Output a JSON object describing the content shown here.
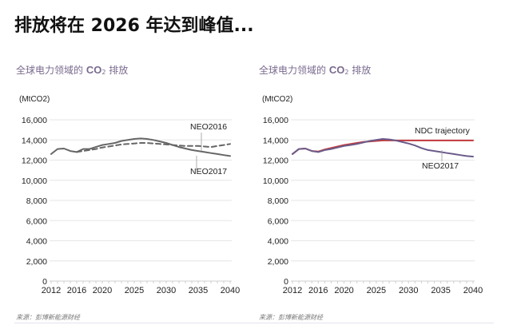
{
  "page": {
    "title": "排放将在 2026 年达到峰值...",
    "source_left": "来源：彭博新能源财经",
    "source_right": "来源：彭博新能源财经"
  },
  "colors": {
    "neo2017_left": "#666666",
    "neo2016_left": "#666666",
    "neo2017_right": "#6b5b8a",
    "ndc": "#c0393b",
    "title_purple": "#7a6a8e",
    "grid": "#e6e6e6"
  },
  "chart_data": [
    {
      "type": "line",
      "title_prefix": "全球电力领域的 ",
      "title_co": "CO",
      "title_sub": "2",
      "title_suffix": " 排放",
      "ylabel": "(MtCO2)",
      "xlabel": "",
      "ylim": [
        0,
        16000
      ],
      "xlim": [
        2012,
        2040
      ],
      "yticks": [
        0,
        2000,
        4000,
        6000,
        8000,
        10000,
        12000,
        14000,
        16000
      ],
      "ytick_labels": [
        "0",
        "2,000",
        "4,000",
        "6,000",
        "8,000",
        "10,000",
        "12,000",
        "14,000",
        "16,000"
      ],
      "xticks": [
        2012,
        2016,
        2020,
        2025,
        2030,
        2035,
        2040
      ],
      "xtick_labels": [
        "2012",
        "2016",
        "2020",
        "2025",
        "2030",
        "2035",
        "2040"
      ],
      "grid": true,
      "series": [
        {
          "name": "NEO2017",
          "style": "solid",
          "x": [
            2012,
            2013,
            2014,
            2015,
            2016,
            2017,
            2018,
            2019,
            2020,
            2021,
            2022,
            2023,
            2024,
            2025,
            2026,
            2027,
            2028,
            2029,
            2030,
            2031,
            2032,
            2033,
            2034,
            2035,
            2036,
            2037,
            2038,
            2039,
            2040
          ],
          "values": [
            12600,
            13100,
            13150,
            12900,
            12800,
            13100,
            13100,
            13300,
            13500,
            13600,
            13700,
            13900,
            14000,
            14100,
            14150,
            14100,
            14000,
            13850,
            13700,
            13500,
            13300,
            13150,
            13000,
            12900,
            12800,
            12700,
            12600,
            12500,
            12400
          ]
        },
        {
          "name": "NEO2016",
          "style": "dashed",
          "x": [
            2016,
            2017,
            2018,
            2019,
            2020,
            2021,
            2022,
            2023,
            2024,
            2025,
            2026,
            2027,
            2028,
            2029,
            2030,
            2031,
            2032,
            2033,
            2034,
            2035,
            2036,
            2037,
            2038,
            2039,
            2040
          ],
          "values": [
            12800,
            12900,
            13000,
            13100,
            13250,
            13350,
            13450,
            13550,
            13600,
            13650,
            13700,
            13700,
            13650,
            13600,
            13550,
            13500,
            13450,
            13400,
            13400,
            13400,
            13350,
            13300,
            13400,
            13500,
            13600
          ]
        }
      ],
      "annotations": [
        "NEO2016",
        "NEO2017"
      ]
    },
    {
      "type": "line",
      "title_prefix": "全球电力领域的 ",
      "title_co": "CO",
      "title_sub": "2",
      "title_suffix": " 排放",
      "ylabel": "(MtCO2)",
      "xlabel": "",
      "ylim": [
        0,
        16000
      ],
      "xlim": [
        2012,
        2040
      ],
      "yticks": [
        0,
        2000,
        4000,
        6000,
        8000,
        10000,
        12000,
        14000,
        16000
      ],
      "ytick_labels": [
        "0",
        "2,000",
        "4,000",
        "6,000",
        "8,000",
        "10,000",
        "12,000",
        "14,000",
        "16,000"
      ],
      "xticks": [
        2012,
        2016,
        2020,
        2025,
        2030,
        2035,
        2040
      ],
      "xtick_labels": [
        "2012",
        "2016",
        "2020",
        "2025",
        "2030",
        "2035",
        "2040"
      ],
      "grid": true,
      "series": [
        {
          "name": "NEO2017",
          "style": "solid",
          "x": [
            2012,
            2013,
            2014,
            2015,
            2016,
            2017,
            2018,
            2019,
            2020,
            2021,
            2022,
            2023,
            2024,
            2025,
            2026,
            2027,
            2028,
            2029,
            2030,
            2031,
            2032,
            2033,
            2034,
            2035,
            2036,
            2037,
            2038,
            2039,
            2040
          ],
          "values": [
            12600,
            13100,
            13150,
            12900,
            12800,
            13000,
            13100,
            13250,
            13400,
            13500,
            13600,
            13750,
            13900,
            14000,
            14100,
            14050,
            13950,
            13800,
            13650,
            13450,
            13200,
            13000,
            12900,
            12800,
            12700,
            12600,
            12500,
            12400,
            12350
          ]
        },
        {
          "name": "NDC trajectory",
          "style": "solid",
          "x": [
            2012,
            2013,
            2014,
            2015,
            2016,
            2017,
            2018,
            2019,
            2020,
            2021,
            2022,
            2023,
            2024,
            2025,
            2026,
            2027,
            2028,
            2029,
            2030,
            2035,
            2040
          ],
          "values": [
            12600,
            13100,
            13150,
            12900,
            12850,
            13050,
            13200,
            13350,
            13500,
            13600,
            13700,
            13800,
            13850,
            13900,
            13950,
            13950,
            13950,
            13950,
            13950,
            13950,
            13950
          ]
        }
      ],
      "annotations": [
        "NDC trajectory",
        "NEO2017"
      ]
    }
  ]
}
